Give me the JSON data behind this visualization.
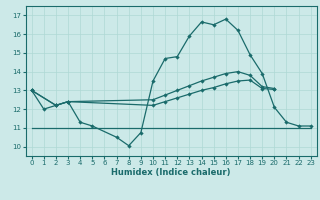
{
  "xlabel": "Humidex (Indice chaleur)",
  "bg_color": "#cce9e8",
  "line_color": "#1a6b6b",
  "grid_color": "#afd8d5",
  "xlim": [
    -0.5,
    23.5
  ],
  "ylim": [
    9.5,
    17.5
  ],
  "yticks": [
    10,
    11,
    12,
    13,
    14,
    15,
    16,
    17
  ],
  "xticks": [
    0,
    1,
    2,
    3,
    4,
    5,
    6,
    7,
    8,
    9,
    10,
    11,
    12,
    13,
    14,
    15,
    16,
    17,
    18,
    19,
    20,
    21,
    22,
    23
  ],
  "s1_x": [
    0,
    1,
    2,
    3,
    4,
    5,
    7,
    8,
    9,
    10,
    11,
    12,
    13,
    14,
    15,
    16,
    17,
    18,
    19,
    20,
    21,
    22,
    23
  ],
  "s1_y": [
    13,
    12,
    12.2,
    12.4,
    11.3,
    11.1,
    10.5,
    10.05,
    10.75,
    13.5,
    14.7,
    14.8,
    15.9,
    16.65,
    16.5,
    16.8,
    16.2,
    14.9,
    13.9,
    12.1,
    11.3,
    11.1,
    11.1
  ],
  "s2_x": [
    0,
    2,
    3,
    10,
    11,
    12,
    13,
    14,
    15,
    16,
    17,
    18,
    19,
    20
  ],
  "s2_y": [
    13,
    12.2,
    12.4,
    12.5,
    12.75,
    13.0,
    13.25,
    13.5,
    13.7,
    13.9,
    14.0,
    13.8,
    13.2,
    13.1
  ],
  "s3_x": [
    0,
    2,
    3,
    10,
    11,
    12,
    13,
    14,
    15,
    16,
    17,
    18,
    19,
    20
  ],
  "s3_y": [
    13,
    12.2,
    12.4,
    12.2,
    12.4,
    12.6,
    12.8,
    13.0,
    13.15,
    13.35,
    13.5,
    13.55,
    13.1,
    13.05
  ],
  "s4_x": [
    0,
    5,
    10,
    11,
    12,
    13,
    14,
    15,
    16,
    17,
    18,
    19,
    20,
    21,
    22,
    23
  ],
  "s4_y": [
    11,
    11,
    11,
    11,
    11,
    11,
    11,
    11,
    11,
    11,
    11,
    11,
    11,
    11,
    11,
    11
  ]
}
